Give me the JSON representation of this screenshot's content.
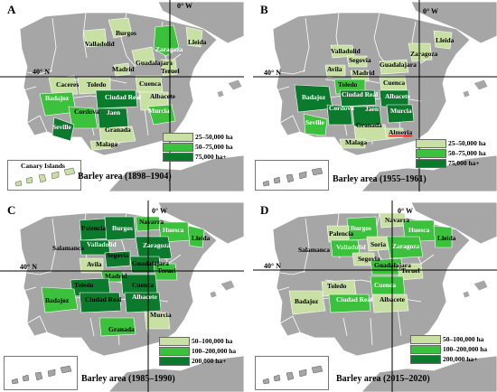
{
  "colors": {
    "land": "#a6a6a6",
    "land_dark": "#8c8c8c",
    "border": "#ffffff",
    "light": "#c9e0a4",
    "medium": "#3cc13c",
    "dark": "#0b7a2c"
  },
  "panels": [
    {
      "letter": "A",
      "meridian_label": "0° W",
      "parallel_label": "40° N",
      "caption": "Barley area (1898–1904)",
      "inset_label": "Canary Islands",
      "legend": [
        {
          "label": "25–50,000 ha",
          "level": "light"
        },
        {
          "label": "50–75,000 ha",
          "level": "medium"
        },
        {
          "label": "75,000 ha+",
          "level": "dark"
        }
      ],
      "cities": [
        "Burgos",
        "Valladolid",
        "Zaragoza",
        "Lleida",
        "Guadalajara",
        "Madrid",
        "Teruel",
        "Caceres",
        "Toledo",
        "Cuenca",
        "Badajoz",
        "Ciudad Real",
        "Albacete",
        "Cordova",
        "Jaen",
        "Murcia",
        "Seville",
        "Granada",
        "Malaga"
      ]
    },
    {
      "letter": "B",
      "meridian_label": "0° W",
      "parallel_label": "40° N",
      "caption": "Barley area (1955–1961)",
      "legend": [
        {
          "label": "25–50,000 ha",
          "level": "light"
        },
        {
          "label": "50–75,000 ha",
          "level": "medium"
        },
        {
          "label": "75,000 ha+",
          "level": "dark"
        }
      ],
      "cities": [
        "Lleida",
        "Valladolid",
        "Zaragoza",
        "Segovia",
        "Guadalajara",
        "Avila",
        "Madrid",
        "Cuenca",
        "Toledo",
        "Ciudad Real",
        "Albacete",
        "Badajoz",
        "Cordova",
        "Jaen",
        "Murcia",
        "Seville",
        "Granada",
        "Almeria",
        "Malaga"
      ]
    },
    {
      "letter": "C",
      "meridian_label": "0° W",
      "parallel_label": "40° N",
      "caption": "Barley area (1985–1990)",
      "legend": [
        {
          "label": "50–100,000 ha",
          "level": "light"
        },
        {
          "label": "100–200,000 ha",
          "level": "medium"
        },
        {
          "label": "200,000 ha+",
          "level": "dark"
        }
      ],
      "cities": [
        "Navarra",
        "Palencia",
        "Burgos",
        "Huesca",
        "Lleida",
        "Salamanca",
        "Valladolid",
        "Zaragoza",
        "Segovia",
        "Guadalajara",
        "Avila",
        "Teruel",
        "Madrid",
        "Toledo",
        "Cuenca",
        "Badajoz",
        "Ciudad Real",
        "Albacete",
        "Murcia",
        "Granada"
      ]
    },
    {
      "letter": "D",
      "meridian_label": "0° W",
      "parallel_label": "40° N",
      "caption": "Barley area (2015–2020)",
      "legend": [
        {
          "label": "50–100,000 ha",
          "level": "light"
        },
        {
          "label": "100–200,000 ha",
          "level": "medium"
        },
        {
          "label": "200,000 ha+",
          "level": "dark"
        }
      ],
      "cities": [
        "Navarra",
        "Burgos",
        "Huesca",
        "Palencia",
        "Lleida",
        "Salamanca",
        "Valladolid",
        "Soria",
        "Zaragoza",
        "Segovia",
        "Guadalajara",
        "Teruel",
        "Toledo",
        "Cuenca",
        "Badajoz",
        "Ciudad Real",
        "Albacete"
      ]
    }
  ]
}
